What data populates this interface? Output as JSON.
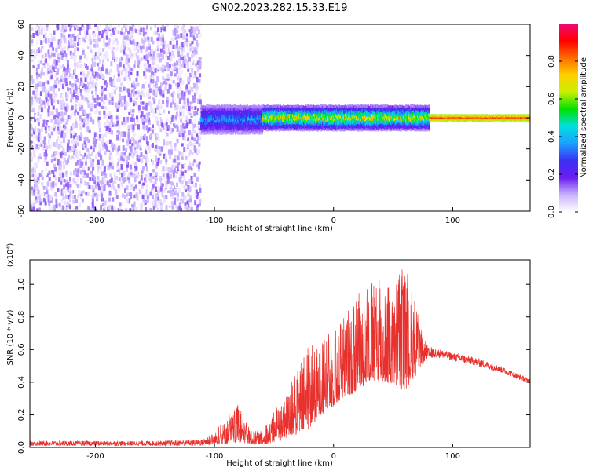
{
  "title": "GN02.2023.282.15.33.E19",
  "colors": {
    "snr_line": "#e8302c",
    "background": "#ffffff",
    "colormap": [
      "#ffffff",
      "#c9b3ff",
      "#6a1ef0",
      "#3b30f5",
      "#1aa0ff",
      "#00e0e0",
      "#00e000",
      "#c8f000",
      "#ffd000",
      "#ff6a00",
      "#ff0000",
      "#f0087a"
    ]
  },
  "chart_data": [
    {
      "type": "heatmap",
      "panel": "spectrogram",
      "xlabel": "Height of straight line (km)",
      "ylabel": "Frequency (Hz)",
      "xlim": [
        -255,
        165
      ],
      "ylim": [
        -60,
        60
      ],
      "x_ticks": [
        -200,
        -100,
        0,
        100
      ],
      "y_ticks": [
        -60,
        -40,
        -20,
        0,
        20,
        40,
        60
      ],
      "grid": false,
      "colorbar": {
        "label": "Normalized spectral amplitude",
        "range": [
          0,
          1
        ],
        "ticks": [
          "0.0",
          "0.2",
          "0.4",
          "0.6",
          "0.8"
        ]
      },
      "regions": [
        {
          "x_range": [
            -255,
            -112
          ],
          "freq_range": [
            -60,
            60
          ],
          "amplitude": [
            0.0,
            0.15
          ],
          "pattern": "scattered noise"
        },
        {
          "x_range": [
            -112,
            -60
          ],
          "freq_range": [
            -10,
            8
          ],
          "amplitude": [
            0.1,
            0.45
          ],
          "pattern": "band around 0 Hz"
        },
        {
          "x_range": [
            -60,
            80
          ],
          "freq_range": [
            -8,
            8
          ],
          "amplitude": [
            0.1,
            0.85
          ],
          "pattern": "band around 0 Hz"
        },
        {
          "x_range": [
            80,
            165
          ],
          "freq_range": [
            -2,
            2
          ],
          "amplitude": [
            0.6,
            0.95
          ],
          "pattern": "narrow line at 0 Hz"
        }
      ]
    },
    {
      "type": "line",
      "panel": "snr",
      "xlabel": "Height of straight line (km)",
      "ylabel": "SNR (10 * v/v)",
      "y_multiplier": "(x10⁴)",
      "xlim": [
        -255,
        165
      ],
      "ylim": [
        0,
        1.15
      ],
      "x_ticks": [
        -200,
        -100,
        0,
        100
      ],
      "y_ticks": [
        "0.0",
        "0.2",
        "0.4",
        "0.6",
        "0.8",
        "1.0"
      ],
      "grid": false,
      "envelope": {
        "x": [
          -255,
          -200,
          -150,
          -110,
          -100,
          -90,
          -80,
          -70,
          -60,
          -50,
          -40,
          -30,
          -20,
          -10,
          0,
          10,
          20,
          30,
          40,
          50,
          60,
          70,
          75,
          80,
          90,
          100,
          120,
          140,
          165
        ],
        "low": [
          0.01,
          0.01,
          0.01,
          0.01,
          0.02,
          0.02,
          0.03,
          0.02,
          0.02,
          0.03,
          0.05,
          0.08,
          0.12,
          0.2,
          0.25,
          0.3,
          0.35,
          0.4,
          0.4,
          0.38,
          0.35,
          0.45,
          0.52,
          0.55,
          0.55,
          0.53,
          0.5,
          0.46,
          0.39
        ],
        "high": [
          0.04,
          0.04,
          0.04,
          0.05,
          0.1,
          0.2,
          0.27,
          0.12,
          0.1,
          0.22,
          0.35,
          0.5,
          0.66,
          0.72,
          0.75,
          0.82,
          0.95,
          1.0,
          1.05,
          1.0,
          1.13,
          0.85,
          0.68,
          0.62,
          0.6,
          0.58,
          0.55,
          0.5,
          0.42
        ]
      }
    }
  ]
}
